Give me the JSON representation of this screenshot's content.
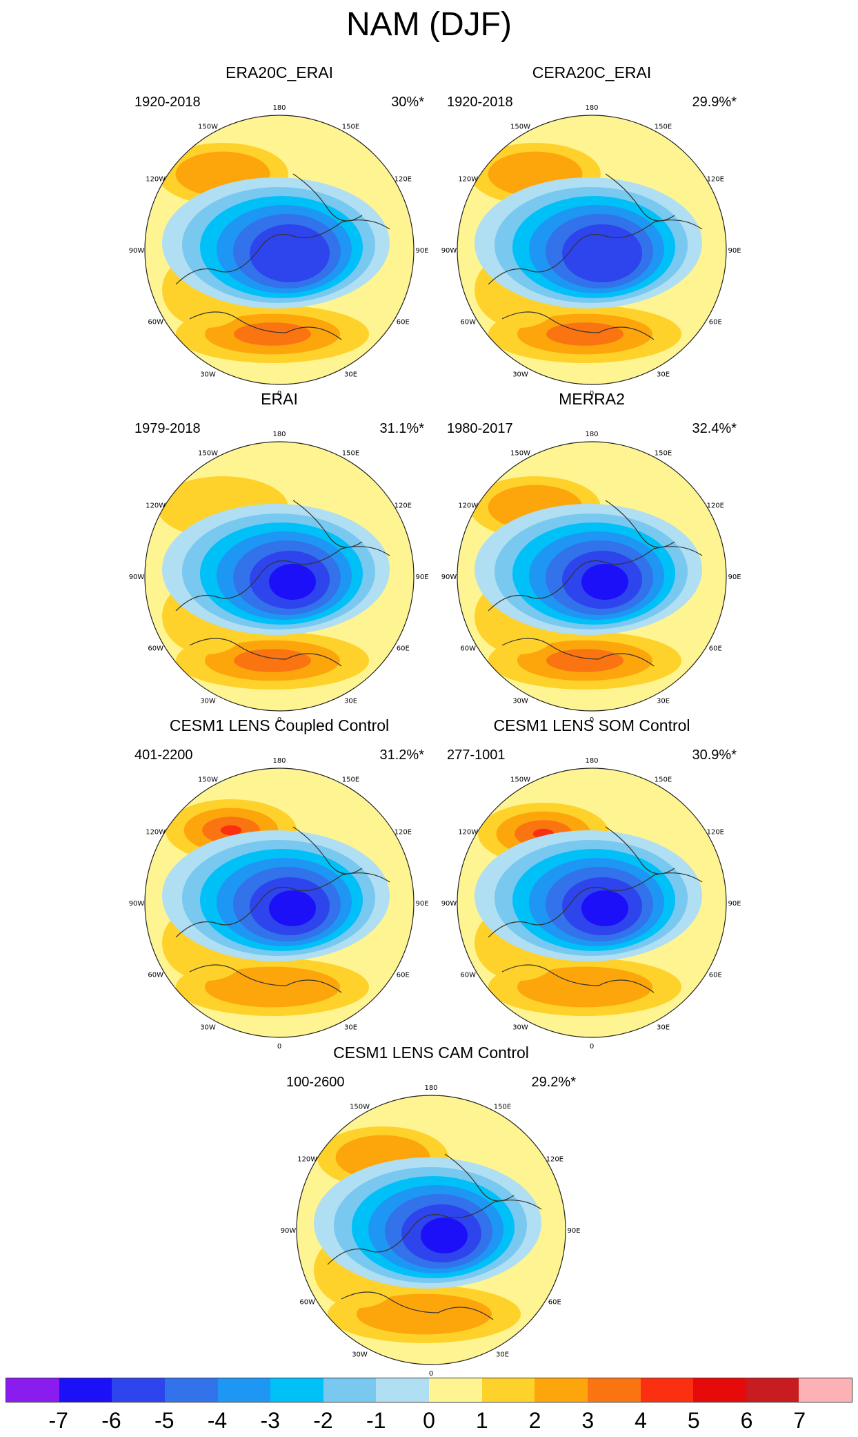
{
  "figure_title": "NAM (DJF)",
  "panels": [
    {
      "title": "ERA20C_ERAI",
      "period": "1920-2018",
      "variance": "30%*"
    },
    {
      "title": "CERA20C_ERAI",
      "period": "1920-2018",
      "variance": "29.9%*"
    },
    {
      "title": "ERAI",
      "period": "1979-2018",
      "variance": "31.1%*"
    },
    {
      "title": "MERRA2",
      "period": "1980-2017",
      "variance": "32.4%*"
    },
    {
      "title": "CESM1 LENS Coupled Control",
      "period": "401-2200",
      "variance": "31.2%*"
    },
    {
      "title": "CESM1 LENS SOM Control",
      "period": "277-1001",
      "variance": "30.9%*"
    },
    {
      "title": "CESM1 LENS CAM Control",
      "period": "100-2600",
      "variance": "29.2%*"
    }
  ],
  "longitude_labels": [
    "180",
    "150E",
    "120E",
    "90E",
    "60E",
    "30E",
    "0",
    "30W",
    "60W",
    "90W",
    "120W",
    "150W"
  ],
  "colorbar": {
    "colors": [
      "#8a1cf0",
      "#1c10f8",
      "#2e44ec",
      "#3272ea",
      "#1e96f4",
      "#00c0f8",
      "#78c8f0",
      "#b0def2",
      "#fef592",
      "#fed22a",
      "#fda60c",
      "#fa7412",
      "#fa3010",
      "#e60a0a",
      "#c81c20",
      "#fcb2b4"
    ],
    "labels": [
      "-7",
      "-6",
      "-5",
      "-4",
      "-3",
      "-2",
      "-1",
      "0",
      "1",
      "2",
      "3",
      "4",
      "5",
      "6",
      "7"
    ]
  }
}
